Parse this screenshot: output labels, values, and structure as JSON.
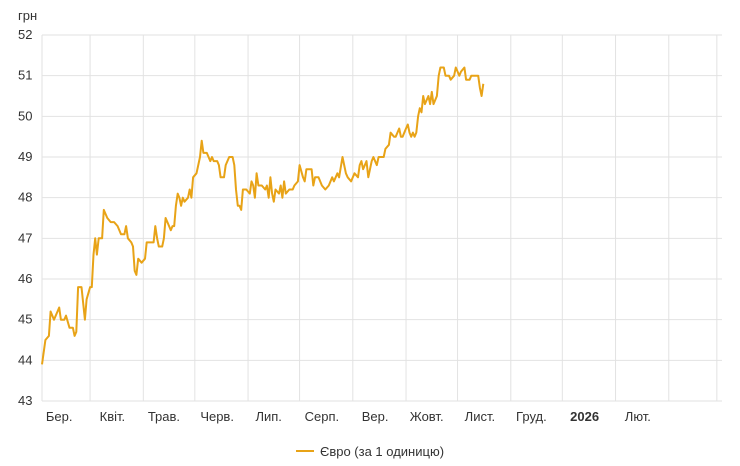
{
  "colors": {
    "line": "#E8A317",
    "grid": "#e2e2e2",
    "text": "#333333"
  },
  "chart_data": {
    "type": "line",
    "ylabel": "грн",
    "ylim": [
      43,
      52
    ],
    "yticks": [
      43,
      44,
      45,
      46,
      47,
      48,
      49,
      50,
      51,
      52
    ],
    "xlim": [
      0,
      396
    ],
    "xticks": [
      {
        "x": 10,
        "label": "Бер.",
        "bold": false
      },
      {
        "x": 41,
        "label": "Квіт.",
        "bold": false
      },
      {
        "x": 71,
        "label": "Трав.",
        "bold": false
      },
      {
        "x": 102,
        "label": "Черв.",
        "bold": false
      },
      {
        "x": 132,
        "label": "Лип.",
        "bold": false
      },
      {
        "x": 163,
        "label": "Серп.",
        "bold": false
      },
      {
        "x": 194,
        "label": "Вер.",
        "bold": false
      },
      {
        "x": 224,
        "label": "Жовт.",
        "bold": false
      },
      {
        "x": 255,
        "label": "Лист.",
        "bold": false
      },
      {
        "x": 285,
        "label": "Груд.",
        "bold": false
      },
      {
        "x": 316,
        "label": "2026",
        "bold": true
      },
      {
        "x": 347,
        "label": "Лют.",
        "bold": false
      }
    ],
    "gridlines_x": [
      0,
      28,
      59,
      89,
      120,
      150,
      181,
      212,
      242,
      273,
      303,
      334,
      365,
      393
    ],
    "grid": true,
    "legend_position": "bottom",
    "series": [
      {
        "name": "Євро (за 1 одиницю)",
        "points": [
          [
            0,
            43.9
          ],
          [
            2,
            44.5
          ],
          [
            4,
            44.6
          ],
          [
            5,
            45.2
          ],
          [
            7,
            45.0
          ],
          [
            9,
            45.2
          ],
          [
            10,
            45.3
          ],
          [
            11,
            45.0
          ],
          [
            13,
            45.0
          ],
          [
            14,
            45.1
          ],
          [
            16,
            44.8
          ],
          [
            18,
            44.8
          ],
          [
            19,
            44.6
          ],
          [
            20,
            44.7
          ],
          [
            21,
            45.8
          ],
          [
            23,
            45.8
          ],
          [
            25,
            45.0
          ],
          [
            26,
            45.5
          ],
          [
            28,
            45.8
          ],
          [
            29,
            45.8
          ],
          [
            30,
            46.6
          ],
          [
            31,
            47.0
          ],
          [
            32,
            46.6
          ],
          [
            33,
            47.0
          ],
          [
            35,
            47.0
          ],
          [
            36,
            47.7
          ],
          [
            38,
            47.5
          ],
          [
            40,
            47.4
          ],
          [
            42,
            47.4
          ],
          [
            44,
            47.3
          ],
          [
            46,
            47.1
          ],
          [
            48,
            47.1
          ],
          [
            49,
            47.3
          ],
          [
            50,
            47.0
          ],
          [
            52,
            46.9
          ],
          [
            53,
            46.8
          ],
          [
            54,
            46.2
          ],
          [
            55,
            46.1
          ],
          [
            56,
            46.5
          ],
          [
            58,
            46.4
          ],
          [
            60,
            46.5
          ],
          [
            61,
            46.9
          ],
          [
            63,
            46.9
          ],
          [
            65,
            46.9
          ],
          [
            66,
            47.3
          ],
          [
            67,
            47.0
          ],
          [
            68,
            46.8
          ],
          [
            70,
            46.8
          ],
          [
            71,
            47.0
          ],
          [
            72,
            47.5
          ],
          [
            73,
            47.4
          ],
          [
            74,
            47.3
          ],
          [
            75,
            47.2
          ],
          [
            76,
            47.3
          ],
          [
            77,
            47.3
          ],
          [
            78,
            47.8
          ],
          [
            79,
            48.1
          ],
          [
            80,
            48.0
          ],
          [
            81,
            47.8
          ],
          [
            82,
            48.0
          ],
          [
            83,
            47.9
          ],
          [
            85,
            48.0
          ],
          [
            86,
            48.2
          ],
          [
            87,
            48.0
          ],
          [
            88,
            48.5
          ],
          [
            90,
            48.6
          ],
          [
            92,
            49.0
          ],
          [
            93,
            49.4
          ],
          [
            94,
            49.1
          ],
          [
            96,
            49.1
          ],
          [
            98,
            48.9
          ],
          [
            99,
            49.0
          ],
          [
            100,
            48.9
          ],
          [
            102,
            48.9
          ],
          [
            103,
            48.8
          ],
          [
            104,
            48.5
          ],
          [
            106,
            48.5
          ],
          [
            107,
            48.8
          ],
          [
            109,
            49.0
          ],
          [
            111,
            49.0
          ],
          [
            112,
            48.8
          ],
          [
            113,
            48.2
          ],
          [
            114,
            47.8
          ],
          [
            115,
            47.8
          ],
          [
            116,
            47.7
          ],
          [
            117,
            48.2
          ],
          [
            119,
            48.2
          ],
          [
            121,
            48.1
          ],
          [
            122,
            48.4
          ],
          [
            123,
            48.3
          ],
          [
            124,
            48.0
          ],
          [
            125,
            48.6
          ],
          [
            126,
            48.3
          ],
          [
            128,
            48.3
          ],
          [
            130,
            48.2
          ],
          [
            131,
            48.3
          ],
          [
            132,
            48.0
          ],
          [
            133,
            48.5
          ],
          [
            134,
            48.1
          ],
          [
            135,
            47.9
          ],
          [
            136,
            48.2
          ],
          [
            138,
            48.1
          ],
          [
            139,
            48.3
          ],
          [
            140,
            48.0
          ],
          [
            141,
            48.4
          ],
          [
            142,
            48.1
          ],
          [
            144,
            48.2
          ],
          [
            146,
            48.2
          ],
          [
            147,
            48.3
          ],
          [
            149,
            48.4
          ],
          [
            150,
            48.8
          ],
          [
            152,
            48.5
          ],
          [
            153,
            48.4
          ],
          [
            154,
            48.7
          ],
          [
            155,
            48.7
          ],
          [
            157,
            48.7
          ],
          [
            158,
            48.3
          ],
          [
            159,
            48.5
          ],
          [
            161,
            48.5
          ],
          [
            163,
            48.3
          ],
          [
            165,
            48.2
          ],
          [
            167,
            48.3
          ],
          [
            169,
            48.5
          ],
          [
            170,
            48.4
          ],
          [
            172,
            48.6
          ],
          [
            173,
            48.5
          ],
          [
            175,
            49.0
          ],
          [
            177,
            48.6
          ],
          [
            178,
            48.5
          ],
          [
            180,
            48.4
          ],
          [
            182,
            48.6
          ],
          [
            184,
            48.5
          ],
          [
            185,
            48.8
          ],
          [
            186,
            48.9
          ],
          [
            187,
            48.7
          ],
          [
            189,
            48.9
          ],
          [
            190,
            48.5
          ],
          [
            192,
            48.9
          ],
          [
            193,
            49.0
          ],
          [
            194,
            48.9
          ],
          [
            195,
            48.8
          ],
          [
            196,
            49.0
          ],
          [
            198,
            49.0
          ],
          [
            199,
            49.0
          ],
          [
            200,
            49.2
          ],
          [
            202,
            49.3
          ],
          [
            203,
            49.6
          ],
          [
            205,
            49.5
          ],
          [
            206,
            49.5
          ],
          [
            208,
            49.7
          ],
          [
            209,
            49.5
          ],
          [
            210,
            49.5
          ],
          [
            212,
            49.7
          ],
          [
            213,
            49.8
          ],
          [
            214,
            49.6
          ],
          [
            215,
            49.5
          ],
          [
            216,
            49.6
          ],
          [
            217,
            49.5
          ],
          [
            218,
            49.6
          ],
          [
            219,
            50.0
          ],
          [
            220,
            50.2
          ],
          [
            221,
            50.1
          ],
          [
            222,
            50.5
          ],
          [
            223,
            50.3
          ],
          [
            225,
            50.5
          ],
          [
            226,
            50.3
          ],
          [
            227,
            50.6
          ],
          [
            228,
            50.3
          ],
          [
            230,
            50.5
          ],
          [
            231,
            51.0
          ],
          [
            232,
            51.2
          ],
          [
            234,
            51.2
          ],
          [
            235,
            51.0
          ],
          [
            237,
            51.0
          ],
          [
            238,
            50.9
          ],
          [
            240,
            51.0
          ],
          [
            241,
            51.2
          ],
          [
            242,
            51.1
          ],
          [
            243,
            51.0
          ],
          [
            244,
            51.1
          ],
          [
            246,
            51.2
          ],
          [
            247,
            50.9
          ],
          [
            249,
            50.9
          ],
          [
            250,
            51.0
          ],
          [
            252,
            51.0
          ],
          [
            254,
            51.0
          ],
          [
            255,
            50.7
          ],
          [
            256,
            50.5
          ],
          [
            257,
            50.8
          ]
        ]
      }
    ]
  }
}
